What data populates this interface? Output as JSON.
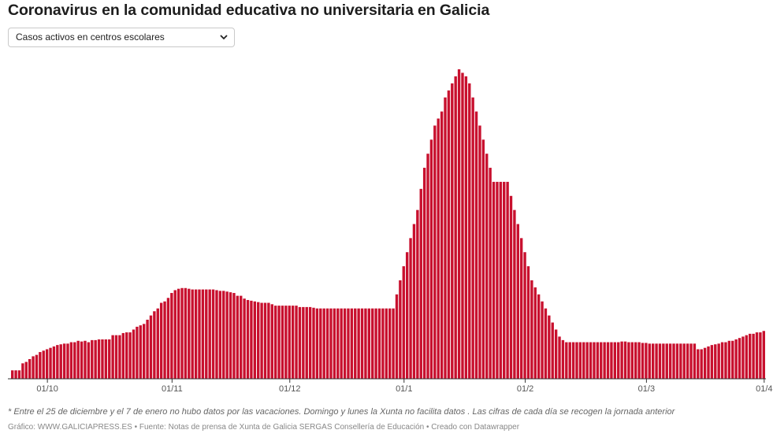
{
  "title": "Coronavirus en la comunidad educativa no universitaria en Galicia",
  "selector": {
    "selected": "Casos activos en centros escolares"
  },
  "note": "* Entre el 25 de diciembre y el 7 de enero no hubo datos por las vacaciones. Domingo y lunes la Xunta no facilita datos . Las cifras de cada día se recogen la jornada anterior",
  "footer": {
    "source_prefix": "Gráfico: ",
    "source_name": "WWW.GALICIAPRESS.ES",
    "sep1": " • ",
    "source_label": "Fuente: ",
    "source_text": "Notas de prensa de Xunta de Galicia SERGAS Consellería de Educación",
    "sep2": " • ",
    "credit": "Creado con Datawrapper"
  },
  "colors": {
    "bar": "#c8102e",
    "bar_edge": "#ffffff",
    "axis": "#333333"
  },
  "chart_data": {
    "type": "bar",
    "series_name": "Casos activos en centros escolares",
    "x_ticks": [
      "01/10",
      "01/11",
      "01/12",
      "01/1",
      "01/2",
      "01/3",
      "01/4"
    ],
    "values": [
      12,
      12,
      12,
      22,
      24,
      28,
      32,
      34,
      38,
      40,
      42,
      44,
      46,
      48,
      49,
      50,
      50,
      52,
      52,
      54,
      53,
      54,
      52,
      55,
      55,
      56,
      56,
      56,
      56,
      62,
      62,
      62,
      65,
      66,
      66,
      70,
      74,
      76,
      78,
      84,
      90,
      96,
      100,
      108,
      110,
      115,
      122,
      126,
      128,
      129,
      129,
      128,
      127,
      127,
      127,
      127,
      127,
      127,
      127,
      126,
      125,
      125,
      124,
      123,
      122,
      118,
      118,
      114,
      112,
      111,
      110,
      109,
      108,
      108,
      108,
      106,
      104,
      104,
      104,
      104,
      104,
      104,
      104,
      102,
      102,
      102,
      102,
      101,
      100,
      100,
      100,
      100,
      100,
      100,
      100,
      100,
      100,
      100,
      100,
      100,
      100,
      100,
      100,
      100,
      100,
      100,
      100,
      100,
      100,
      100,
      100,
      120,
      140,
      160,
      180,
      200,
      220,
      240,
      270,
      300,
      320,
      340,
      360,
      370,
      380,
      400,
      410,
      420,
      430,
      440,
      435,
      430,
      420,
      400,
      380,
      360,
      340,
      320,
      300,
      280,
      280,
      280,
      280,
      280,
      260,
      240,
      220,
      200,
      180,
      160,
      140,
      130,
      120,
      110,
      100,
      90,
      80,
      70,
      60,
      55,
      52,
      52,
      52,
      52,
      52,
      52,
      52,
      52,
      52,
      52,
      52,
      52,
      52,
      52,
      52,
      52,
      53,
      53,
      52,
      52,
      52,
      52,
      51,
      51,
      50,
      50,
      50,
      50,
      50,
      50,
      50,
      50,
      50,
      50,
      50,
      50,
      50,
      50,
      42,
      42,
      44,
      46,
      48,
      49,
      50,
      52,
      52,
      54,
      54,
      56,
      58,
      60,
      62,
      64,
      64,
      66,
      66,
      68
    ]
  }
}
